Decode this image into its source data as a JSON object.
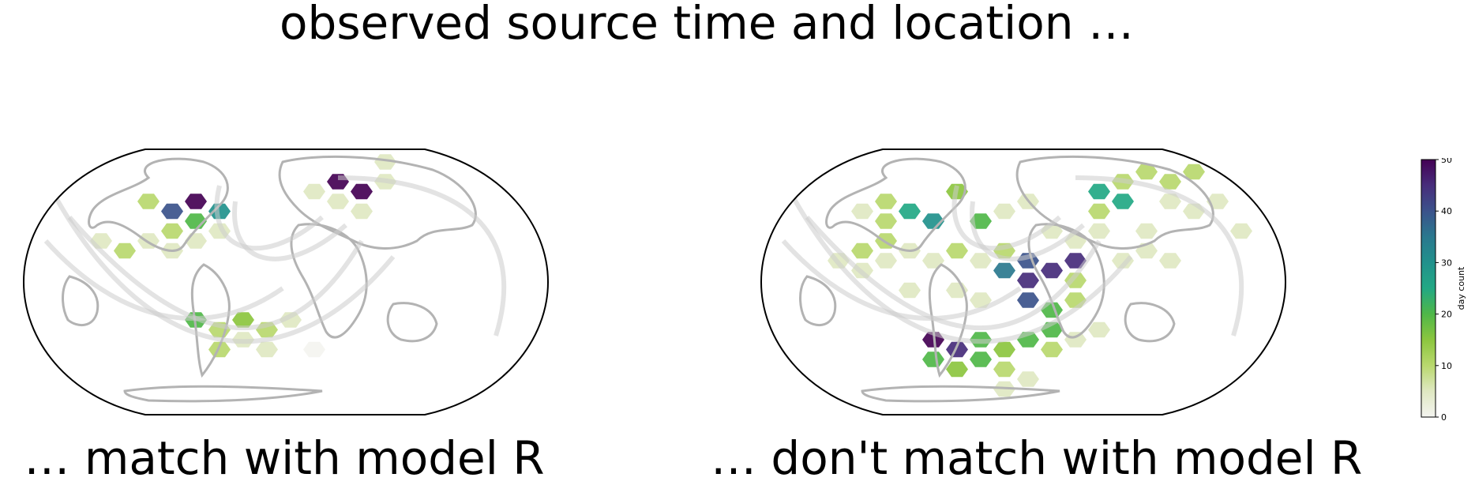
{
  "figure": {
    "title": "observed source time and location …",
    "panels": [
      {
        "id": "match",
        "caption": "… match with model R"
      },
      {
        "id": "nomatch",
        "caption": "… don't match with model R"
      }
    ]
  },
  "colorbar": {
    "label": "day count",
    "ticks": [
      "0",
      "10",
      "20",
      "30",
      "40",
      "50"
    ],
    "range": [
      0,
      50
    ],
    "colors": [
      "#f4f4f0",
      "#dfe8c2",
      "#b9d86e",
      "#8cc63f",
      "#4fb748",
      "#22a884",
      "#21918c",
      "#2a788e",
      "#3b528b",
      "#472d7b",
      "#440154"
    ]
  },
  "map_style": {
    "coastline_color": "#b3b3b3",
    "path_color": "#cccccc",
    "frame_color": "#000000"
  }
}
